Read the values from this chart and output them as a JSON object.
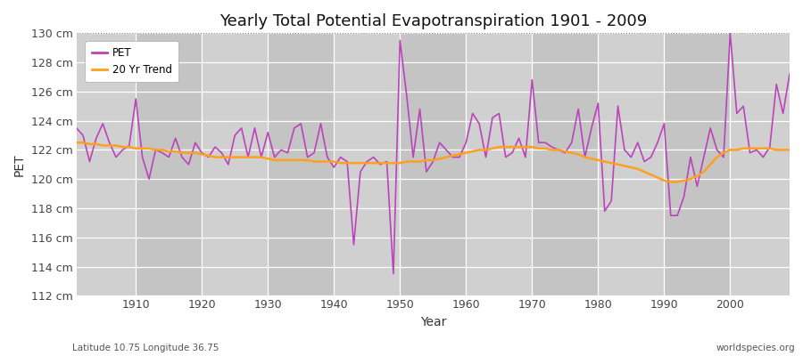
{
  "title": "Yearly Total Potential Evapotranspiration 1901 - 2009",
  "xlabel": "Year",
  "ylabel": "PET",
  "subtitle_left": "Latitude 10.75 Longitude 36.75",
  "subtitle_right": "worldspecies.org",
  "ylim": [
    112,
    130
  ],
  "xlim": [
    1901,
    2009
  ],
  "yticks": [
    112,
    114,
    116,
    118,
    120,
    122,
    124,
    126,
    128,
    130
  ],
  "xticks": [
    1910,
    1920,
    1930,
    1940,
    1950,
    1960,
    1970,
    1980,
    1990,
    2000
  ],
  "pet_color": "#BB44BB",
  "trend_color": "#FFA020",
  "bg_color": "#DCDCDC",
  "stripe_color1": "#D8D8D8",
  "stripe_color2": "#C8C8C8",
  "grid_color": "#FFFFFF",
  "legend_labels": [
    "PET",
    "20 Yr Trend"
  ],
  "years": [
    1901,
    1902,
    1903,
    1904,
    1905,
    1906,
    1907,
    1908,
    1909,
    1910,
    1911,
    1912,
    1913,
    1914,
    1915,
    1916,
    1917,
    1918,
    1919,
    1920,
    1921,
    1922,
    1923,
    1924,
    1925,
    1926,
    1927,
    1928,
    1929,
    1930,
    1931,
    1932,
    1933,
    1934,
    1935,
    1936,
    1937,
    1938,
    1939,
    1940,
    1941,
    1942,
    1943,
    1944,
    1945,
    1946,
    1947,
    1948,
    1949,
    1950,
    1951,
    1952,
    1953,
    1954,
    1955,
    1956,
    1957,
    1958,
    1959,
    1960,
    1961,
    1962,
    1963,
    1964,
    1965,
    1966,
    1967,
    1968,
    1969,
    1970,
    1971,
    1972,
    1973,
    1974,
    1975,
    1976,
    1977,
    1978,
    1979,
    1980,
    1981,
    1982,
    1983,
    1984,
    1985,
    1986,
    1987,
    1988,
    1989,
    1990,
    1991,
    1992,
    1993,
    1994,
    1995,
    1996,
    1997,
    1998,
    1999,
    2000,
    2001,
    2002,
    2003,
    2004,
    2005,
    2006,
    2007,
    2008,
    2009
  ],
  "pet_values": [
    123.5,
    123.0,
    121.2,
    122.8,
    123.8,
    122.5,
    121.5,
    122.0,
    122.3,
    125.5,
    121.5,
    120.0,
    122.0,
    121.8,
    121.5,
    122.8,
    121.5,
    121.0,
    122.5,
    121.8,
    121.5,
    122.2,
    121.8,
    121.0,
    123.0,
    123.5,
    121.5,
    123.5,
    121.5,
    123.2,
    121.5,
    122.0,
    121.8,
    123.5,
    123.8,
    121.5,
    121.8,
    123.8,
    121.5,
    120.8,
    121.5,
    121.2,
    115.5,
    120.5,
    121.2,
    121.5,
    121.0,
    121.2,
    113.5,
    129.5,
    125.8,
    121.5,
    124.8,
    120.5,
    121.2,
    122.5,
    122.0,
    121.5,
    121.5,
    122.5,
    124.5,
    123.8,
    121.5,
    124.2,
    124.5,
    121.5,
    121.8,
    122.8,
    121.5,
    126.8,
    122.5,
    122.5,
    122.2,
    122.0,
    121.8,
    122.5,
    124.8,
    121.5,
    123.5,
    125.2,
    117.8,
    118.5,
    125.0,
    122.0,
    121.5,
    122.5,
    121.2,
    121.5,
    122.5,
    123.8,
    117.5,
    117.5,
    118.8,
    121.5,
    119.5,
    121.5,
    123.5,
    122.0,
    121.5,
    130.0,
    124.5,
    125.0,
    121.8,
    122.0,
    121.5,
    122.2,
    126.5,
    124.5,
    127.2
  ],
  "trend_values": [
    122.5,
    122.5,
    122.4,
    122.4,
    122.3,
    122.3,
    122.3,
    122.2,
    122.2,
    122.1,
    122.1,
    122.1,
    122.0,
    122.0,
    121.9,
    121.9,
    121.8,
    121.8,
    121.8,
    121.7,
    121.6,
    121.5,
    121.5,
    121.5,
    121.5,
    121.5,
    121.5,
    121.5,
    121.5,
    121.4,
    121.3,
    121.3,
    121.3,
    121.3,
    121.3,
    121.3,
    121.2,
    121.2,
    121.2,
    121.2,
    121.1,
    121.1,
    121.1,
    121.1,
    121.1,
    121.1,
    121.1,
    121.1,
    121.1,
    121.1,
    121.2,
    121.2,
    121.2,
    121.3,
    121.3,
    121.4,
    121.5,
    121.6,
    121.7,
    121.8,
    121.9,
    122.0,
    122.0,
    122.1,
    122.2,
    122.2,
    122.2,
    122.2,
    122.2,
    122.2,
    122.1,
    122.1,
    122.0,
    122.0,
    121.9,
    121.8,
    121.7,
    121.5,
    121.4,
    121.3,
    121.2,
    121.1,
    121.0,
    120.9,
    120.8,
    120.7,
    120.5,
    120.3,
    120.1,
    119.9,
    119.8,
    119.8,
    119.9,
    120.0,
    120.2,
    120.5,
    121.0,
    121.5,
    121.8,
    122.0,
    122.0,
    122.1,
    122.1,
    122.1,
    122.1,
    122.1,
    122.0,
    122.0,
    122.0
  ]
}
